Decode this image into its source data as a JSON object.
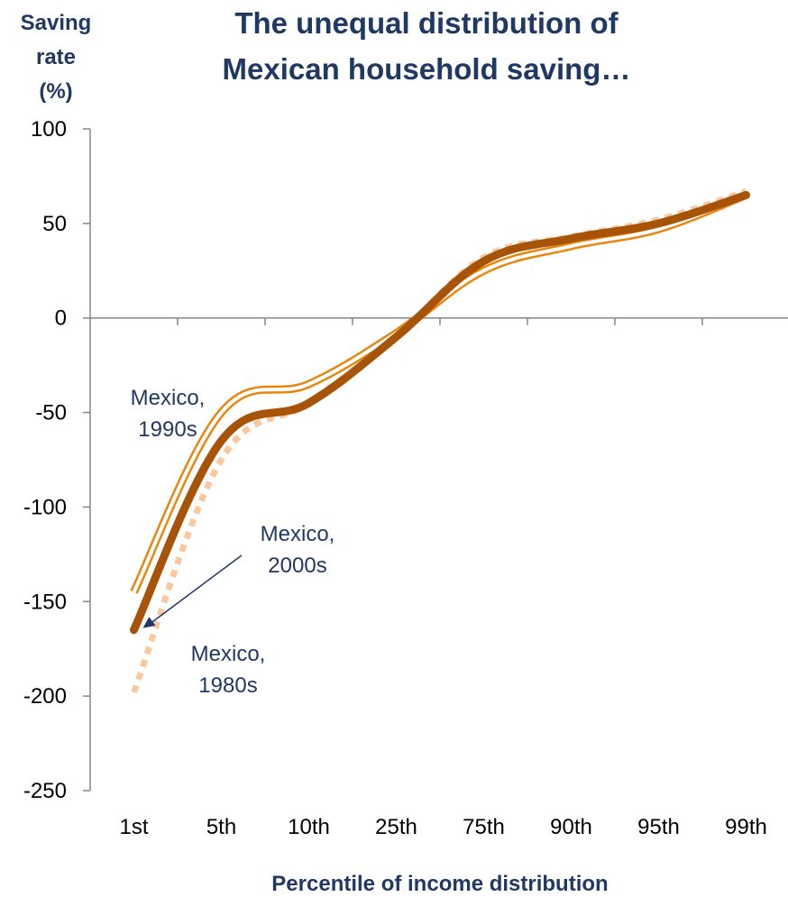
{
  "chart_data": {
    "type": "line",
    "title_lines": [
      "The unequal distribution of",
      "Mexican household saving…"
    ],
    "ylabel_lines": [
      "Saving",
      "rate",
      "(%)"
    ],
    "xlabel": "Percentile of income distribution",
    "categories": [
      "1st",
      "5th",
      "10th",
      "25th",
      "75th",
      "90th",
      "95th",
      "99th"
    ],
    "ylim": [
      -250,
      100
    ],
    "yticks": [
      100,
      50,
      0,
      -50,
      -100,
      -150,
      -200,
      -250
    ],
    "grid": false,
    "colors": {
      "mexico_1980s": "#f8c9a0",
      "mexico_1990s": "#e8860f",
      "mexico_2000s": "#a85408",
      "text": "#1f3864",
      "arrow": "#1f3864"
    },
    "series": [
      {
        "name": "Mexico, 1980s",
        "values": [
          -198,
          -75,
          -45,
          -10,
          32,
          43,
          52,
          67
        ]
      },
      {
        "name": "Mexico, 1990s",
        "values": [
          -145,
          -50,
          -35,
          -8,
          25,
          38,
          47,
          65
        ]
      },
      {
        "name": "Mexico, 2000s",
        "values": [
          -165,
          -65,
          -45,
          -10,
          30,
          42,
          50,
          65
        ]
      }
    ],
    "annotations": [
      {
        "lines": [
          "Mexico,",
          "1990s"
        ]
      },
      {
        "lines": [
          "Mexico,",
          "2000s"
        ]
      },
      {
        "lines": [
          "Mexico,",
          "1980s"
        ]
      }
    ]
  }
}
